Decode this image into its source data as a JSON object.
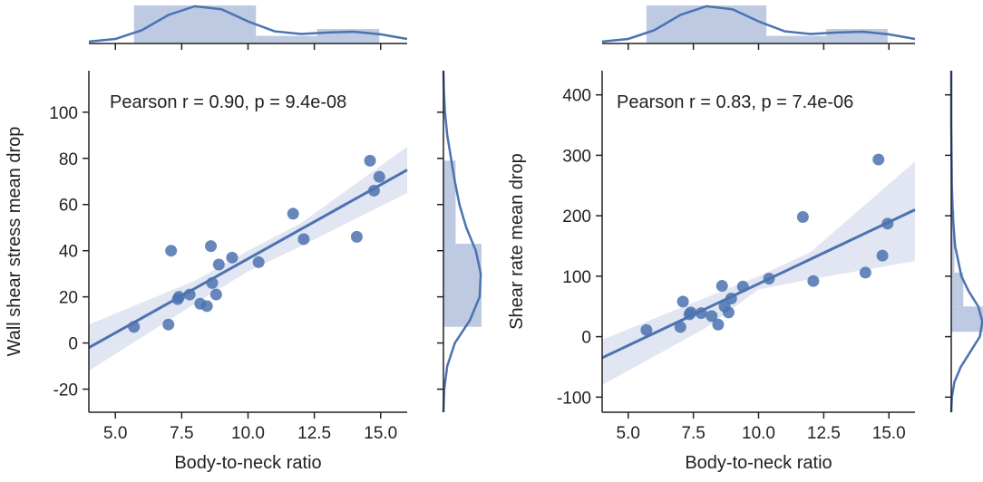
{
  "colors": {
    "accent": "#4c72b0",
    "band": "#cdd6ea",
    "hist": "#a8b8d8",
    "axis": "#222222"
  },
  "chart_data": [
    {
      "id": "left",
      "type": "scatter",
      "annotation": "Pearson r = 0.90, p = 9.4e-08",
      "xlabel": "Body-to-neck ratio",
      "ylabel": "Wall shear stress mean drop",
      "xlim": [
        4.0,
        16.0
      ],
      "ylim": [
        -30,
        118
      ],
      "xticks": [
        5.0,
        7.5,
        10.0,
        12.5,
        15.0
      ],
      "xtick_labels": [
        "5.0",
        "7.5",
        "10.0",
        "12.5",
        "15.0"
      ],
      "yticks": [
        -20,
        0,
        20,
        40,
        60,
        80,
        100
      ],
      "ytick_labels": [
        "-20",
        "0",
        "20",
        "40",
        "60",
        "80",
        "100"
      ],
      "points": [
        {
          "x": 5.7,
          "y": 7
        },
        {
          "x": 7.0,
          "y": 8
        },
        {
          "x": 7.1,
          "y": 40
        },
        {
          "x": 7.35,
          "y": 19
        },
        {
          "x": 7.4,
          "y": 20
        },
        {
          "x": 7.8,
          "y": 21
        },
        {
          "x": 8.2,
          "y": 17
        },
        {
          "x": 8.45,
          "y": 16
        },
        {
          "x": 8.6,
          "y": 42
        },
        {
          "x": 8.65,
          "y": 26
        },
        {
          "x": 8.8,
          "y": 21
        },
        {
          "x": 8.9,
          "y": 34
        },
        {
          "x": 9.4,
          "y": 37
        },
        {
          "x": 10.4,
          "y": 35
        },
        {
          "x": 11.7,
          "y": 56
        },
        {
          "x": 12.1,
          "y": 45
        },
        {
          "x": 14.1,
          "y": 46
        },
        {
          "x": 14.6,
          "y": 79
        },
        {
          "x": 14.75,
          "y": 66
        },
        {
          "x": 14.95,
          "y": 72
        }
      ],
      "regression": {
        "x": [
          4.0,
          16.0
        ],
        "y": [
          -2,
          75
        ]
      },
      "band": {
        "x": [
          4.0,
          8.0,
          10.0,
          12.0,
          16.0
        ],
        "upper": [
          8,
          27,
          40,
          52,
          85
        ],
        "lower": [
          -12,
          17,
          31,
          42,
          65
        ]
      },
      "marginal_x": {
        "bins": [
          {
            "start": 5.7,
            "end": 10.3,
            "height": 1.0
          },
          {
            "start": 10.3,
            "end": 12.6,
            "height": 0.2
          },
          {
            "start": 12.6,
            "end": 14.95,
            "height": 0.38
          }
        ],
        "kde": {
          "x": [
            4.0,
            5.0,
            6.0,
            7.0,
            8.0,
            9.0,
            10.0,
            11.0,
            12.0,
            13.0,
            14.0,
            15.0,
            16.0
          ],
          "y": [
            0.05,
            0.12,
            0.35,
            0.75,
            0.98,
            0.9,
            0.58,
            0.32,
            0.25,
            0.29,
            0.31,
            0.24,
            0.12
          ]
        }
      },
      "marginal_y": {
        "bins": [
          {
            "start": 7,
            "end": 43,
            "height": 1.0
          },
          {
            "start": 43,
            "end": 79,
            "height": 0.32
          }
        ],
        "kde": {
          "y": [
            -30,
            -20,
            -10,
            0,
            10,
            20,
            30,
            40,
            50,
            60,
            70,
            80,
            90,
            100,
            110,
            118
          ],
          "x": [
            0.0,
            0.02,
            0.1,
            0.3,
            0.7,
            0.95,
            0.98,
            0.85,
            0.6,
            0.42,
            0.3,
            0.2,
            0.1,
            0.04,
            0.01,
            0.0
          ]
        }
      }
    },
    {
      "id": "right",
      "type": "scatter",
      "annotation": "Pearson r = 0.83, p = 7.4e-06",
      "xlabel": "Body-to-neck ratio",
      "ylabel": "Shear rate mean drop",
      "xlim": [
        4.0,
        16.0
      ],
      "ylim": [
        -125,
        440
      ],
      "xticks": [
        5.0,
        7.5,
        10.0,
        12.5,
        15.0
      ],
      "xtick_labels": [
        "5.0",
        "7.5",
        "10.0",
        "12.5",
        "15.0"
      ],
      "yticks": [
        -100,
        0,
        100,
        200,
        300,
        400
      ],
      "ytick_labels": [
        "-100",
        "0",
        "100",
        "200",
        "300",
        "400"
      ],
      "points": [
        {
          "x": 5.7,
          "y": 11
        },
        {
          "x": 7.0,
          "y": 16
        },
        {
          "x": 7.1,
          "y": 58
        },
        {
          "x": 7.35,
          "y": 37
        },
        {
          "x": 7.4,
          "y": 40
        },
        {
          "x": 7.8,
          "y": 39
        },
        {
          "x": 8.2,
          "y": 34
        },
        {
          "x": 8.45,
          "y": 20
        },
        {
          "x": 8.6,
          "y": 84
        },
        {
          "x": 8.7,
          "y": 50
        },
        {
          "x": 8.85,
          "y": 40
        },
        {
          "x": 8.95,
          "y": 63
        },
        {
          "x": 9.4,
          "y": 83
        },
        {
          "x": 10.4,
          "y": 96
        },
        {
          "x": 11.7,
          "y": 198
        },
        {
          "x": 12.1,
          "y": 92
        },
        {
          "x": 14.1,
          "y": 106
        },
        {
          "x": 14.6,
          "y": 293
        },
        {
          "x": 14.75,
          "y": 134
        },
        {
          "x": 14.95,
          "y": 187
        }
      ],
      "regression": {
        "x": [
          4.0,
          16.0
        ],
        "y": [
          -35,
          210
        ]
      },
      "band": {
        "x": [
          4.0,
          8.0,
          10.0,
          12.0,
          16.0
        ],
        "upper": [
          -5,
          65,
          100,
          140,
          290
        ],
        "lower": [
          -80,
          15,
          78,
          95,
          125
        ]
      },
      "marginal_x": {
        "bins": [
          {
            "start": 5.7,
            "end": 10.3,
            "height": 1.0
          },
          {
            "start": 10.3,
            "end": 12.6,
            "height": 0.2
          },
          {
            "start": 12.6,
            "end": 14.95,
            "height": 0.38
          }
        ],
        "kde": {
          "x": [
            4.0,
            5.0,
            6.0,
            7.0,
            8.0,
            9.0,
            10.0,
            11.0,
            12.0,
            13.0,
            14.0,
            15.0,
            16.0
          ],
          "y": [
            0.05,
            0.12,
            0.35,
            0.75,
            0.98,
            0.9,
            0.58,
            0.32,
            0.25,
            0.29,
            0.31,
            0.24,
            0.12
          ]
        }
      },
      "marginal_y": {
        "bins": [
          {
            "start": 8,
            "end": 50,
            "height": 1.0
          },
          {
            "start": 50,
            "end": 106,
            "height": 0.38
          },
          {
            "start": 106,
            "end": 210,
            "height": 0.1
          }
        ],
        "kde": {
          "y": [
            -125,
            -100,
            -75,
            -50,
            -25,
            0,
            25,
            50,
            75,
            100,
            150,
            200,
            250,
            300,
            350,
            440
          ],
          "x": [
            0.0,
            0.02,
            0.1,
            0.3,
            0.6,
            0.9,
            0.98,
            0.85,
            0.55,
            0.32,
            0.12,
            0.05,
            0.02,
            0.01,
            0.0,
            0.0
          ]
        }
      }
    }
  ]
}
